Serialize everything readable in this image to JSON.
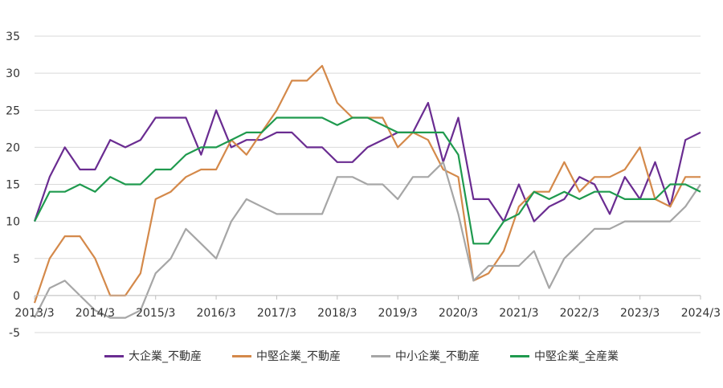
{
  "chart_data": {
    "type": "line",
    "x": [
      "2013/3",
      "2013/6",
      "2013/9",
      "2013/12",
      "2014/3",
      "2014/6",
      "2014/9",
      "2014/12",
      "2015/3",
      "2015/6",
      "2015/9",
      "2015/12",
      "2016/3",
      "2016/6",
      "2016/9",
      "2016/12",
      "2017/3",
      "2017/6",
      "2017/9",
      "2017/12",
      "2018/3",
      "2018/6",
      "2018/9",
      "2018/12",
      "2019/3",
      "2019/6",
      "2019/9",
      "2019/12",
      "2020/3",
      "2020/6",
      "2020/9",
      "2020/12",
      "2021/3",
      "2021/6",
      "2021/9",
      "2021/12",
      "2022/3",
      "2022/6",
      "2022/9",
      "2022/12",
      "2023/3",
      "2023/6",
      "2023/9",
      "2023/12",
      "2024/3"
    ],
    "x_tick_labels": [
      "2013/3",
      "2014/3",
      "2015/3",
      "2016/3",
      "2017/3",
      "2018/3",
      "2019/3",
      "2020/3",
      "2021/3",
      "2022/3",
      "2023/3",
      "2024/3"
    ],
    "y_ticks": [
      -5,
      0,
      5,
      10,
      15,
      20,
      25,
      30,
      35
    ],
    "ylim": [
      -5,
      35
    ],
    "grid": "horizontal",
    "legend_position": "bottom",
    "series": [
      {
        "name": "大企業_不動産",
        "color": "#6A2C91",
        "values": [
          10,
          16,
          20,
          17,
          17,
          21,
          20,
          21,
          24,
          24,
          24,
          19,
          25,
          20,
          21,
          21,
          22,
          22,
          20,
          20,
          18,
          18,
          20,
          21,
          22,
          22,
          26,
          18,
          24,
          13,
          13,
          10,
          15,
          10,
          12,
          13,
          16,
          15,
          11,
          16,
          13,
          18,
          12,
          21,
          22
        ]
      },
      {
        "name": "中堅企業_不動産",
        "color": "#D4894A",
        "values": [
          -1,
          5,
          8,
          8,
          5,
          0,
          0,
          3,
          13,
          14,
          16,
          17,
          17,
          21,
          19,
          22,
          25,
          29,
          29,
          31,
          26,
          24,
          24,
          24,
          20,
          22,
          21,
          17,
          16,
          2,
          3,
          6,
          12,
          14,
          14,
          18,
          14,
          16,
          16,
          17,
          20,
          13,
          12,
          16,
          16
        ]
      },
      {
        "name": "中小企業_不動産",
        "color": "#A6A6A6",
        "values": [
          -3,
          1,
          2,
          0,
          -2,
          -3,
          -3,
          -2,
          3,
          5,
          9,
          7,
          5,
          10,
          13,
          12,
          11,
          11,
          11,
          11,
          16,
          16,
          15,
          15,
          13,
          16,
          16,
          18,
          11,
          2,
          4,
          4,
          4,
          6,
          1,
          5,
          7,
          9,
          9,
          10,
          10,
          10,
          10,
          12,
          15
        ]
      },
      {
        "name": "中堅企業_全産業",
        "color": "#1F9A4E",
        "values": [
          10,
          14,
          14,
          15,
          14,
          16,
          15,
          15,
          17,
          17,
          19,
          20,
          20,
          21,
          22,
          22,
          24,
          24,
          24,
          24,
          23,
          24,
          24,
          23,
          22,
          22,
          22,
          22,
          19,
          7,
          7,
          10,
          11,
          14,
          13,
          14,
          13,
          14,
          14,
          13,
          13,
          13,
          15,
          15,
          14
        ]
      }
    ]
  }
}
